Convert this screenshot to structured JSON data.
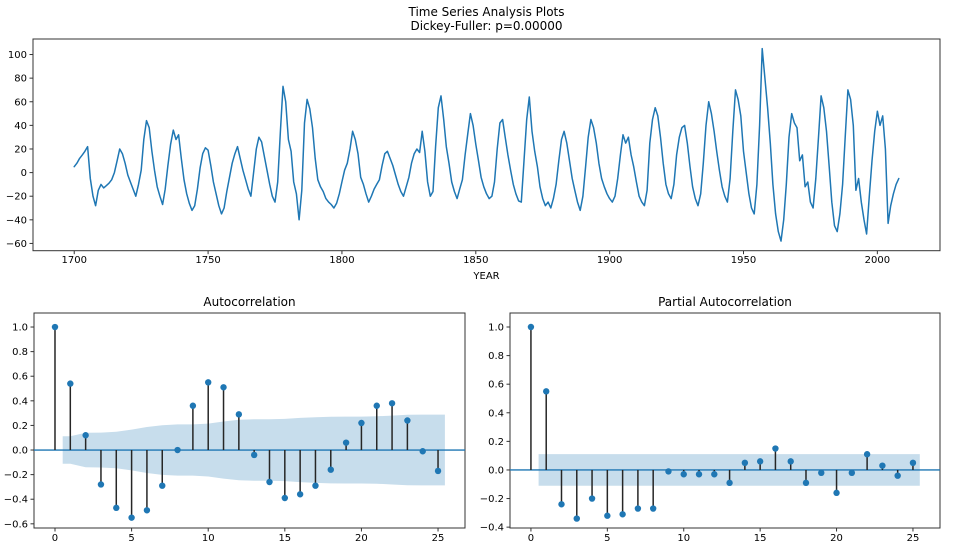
{
  "figure": {
    "title_line1": "Time Series Analysis Plots",
    "title_line2": "Dickey-Fuller: p=0.00000",
    "background": "#ffffff",
    "colors": {
      "series_line": "#1f77b4",
      "marker": "#1f77b4",
      "stem_line": "#262626",
      "ci_band": "#c7ddec",
      "zero_line": "#1f77b4",
      "spine": "#333333",
      "text": "#000000"
    }
  },
  "chart_data": [
    {
      "id": "timeseries",
      "type": "line",
      "title": "",
      "xlabel": "YEAR",
      "ylabel": "",
      "year_start": 1700,
      "values": [
        5,
        8,
        12,
        15,
        18,
        22,
        -5,
        -20,
        -28,
        -15,
        -10,
        -13,
        -11,
        -9,
        -6,
        0,
        10,
        20,
        16,
        8,
        -2,
        -8,
        -14,
        -20,
        -10,
        2,
        28,
        44,
        38,
        18,
        2,
        -12,
        -20,
        -27,
        -14,
        6,
        24,
        36,
        28,
        32,
        12,
        -6,
        -18,
        -26,
        -32,
        -28,
        -14,
        4,
        16,
        21,
        19,
        6,
        -8,
        -18,
        -28,
        -35,
        -30,
        -16,
        -4,
        8,
        16,
        22,
        12,
        2,
        -6,
        -14,
        -20,
        0,
        20,
        30,
        26,
        14,
        2,
        -10,
        -20,
        -25,
        -8,
        35,
        73,
        60,
        28,
        18,
        -8,
        -18,
        -40,
        -15,
        42,
        62,
        54,
        38,
        12,
        -6,
        -12,
        -16,
        -22,
        -25,
        -27,
        -30,
        -26,
        -18,
        -8,
        2,
        8,
        20,
        35,
        28,
        16,
        -4,
        -10,
        -18,
        -25,
        -20,
        -14,
        -10,
        -6,
        6,
        16,
        18,
        12,
        6,
        -2,
        -10,
        -16,
        -20,
        -12,
        -4,
        8,
        16,
        20,
        17,
        35,
        18,
        -8,
        -20,
        -16,
        22,
        55,
        65,
        45,
        22,
        8,
        -8,
        -16,
        -22,
        -14,
        -6,
        15,
        33,
        50,
        40,
        24,
        10,
        -4,
        -12,
        -18,
        -22,
        -20,
        -8,
        20,
        42,
        45,
        30,
        15,
        2,
        -10,
        -18,
        -24,
        -25,
        10,
        45,
        64,
        35,
        18,
        5,
        -12,
        -22,
        -28,
        -25,
        -30,
        -22,
        -10,
        10,
        28,
        35,
        25,
        10,
        -5,
        -15,
        -25,
        -32,
        -20,
        5,
        30,
        45,
        38,
        25,
        8,
        -5,
        -12,
        -18,
        -22,
        -25,
        -20,
        -5,
        15,
        32,
        25,
        30,
        15,
        5,
        -8,
        -20,
        -25,
        -28,
        -15,
        25,
        45,
        55,
        48,
        30,
        8,
        -10,
        -18,
        -22,
        -10,
        15,
        30,
        38,
        40,
        25,
        5,
        -12,
        -22,
        -28,
        -18,
        8,
        40,
        60,
        50,
        35,
        18,
        2,
        -12,
        -20,
        -25,
        -5,
        35,
        70,
        62,
        48,
        18,
        0,
        -18,
        -30,
        -35,
        -10,
        40,
        105,
        80,
        55,
        25,
        -10,
        -35,
        -50,
        -58,
        -40,
        -10,
        30,
        50,
        42,
        38,
        10,
        15,
        -12,
        -8,
        -25,
        -30,
        -5,
        30,
        65,
        55,
        35,
        5,
        -25,
        -45,
        -50,
        -35,
        -10,
        30,
        70,
        62,
        40,
        -15,
        -5,
        -25,
        -40,
        -52,
        -20,
        10,
        35,
        52,
        40,
        48,
        20,
        -43,
        -28,
        -18,
        -10,
        -5
      ],
      "xticks": [
        1700,
        1750,
        1800,
        1850,
        1900,
        1950,
        2000
      ],
      "xtick_labels": [
        "1700",
        "1750",
        "1800",
        "1850",
        "1900",
        "1950",
        "2000"
      ],
      "yticks": [
        100,
        80,
        60,
        40,
        20,
        0,
        -20,
        -40,
        -60
      ],
      "ytick_labels": [
        "100",
        "80",
        "60",
        "40",
        "20",
        "0",
        "−20",
        "−40",
        "−60"
      ],
      "xlim": [
        1684.6,
        2023.4
      ],
      "ylim": [
        -66.15,
        113.15
      ],
      "grid": false,
      "legend": null
    },
    {
      "id": "acf",
      "type": "stem",
      "title": "Autocorrelation",
      "lags": [
        0,
        1,
        2,
        3,
        4,
        5,
        6,
        7,
        8,
        9,
        10,
        11,
        12,
        13,
        14,
        15,
        16,
        17,
        18,
        19,
        20,
        21,
        22,
        23,
        24,
        25
      ],
      "values": [
        1.0,
        0.54,
        0.12,
        -0.28,
        -0.47,
        -0.55,
        -0.49,
        -0.29,
        0.0,
        0.36,
        0.55,
        0.51,
        0.29,
        -0.04,
        -0.26,
        -0.39,
        -0.36,
        -0.29,
        -0.16,
        0.06,
        0.22,
        0.36,
        0.38,
        0.24,
        -0.01,
        -0.17
      ],
      "ci_band": {
        "x_start": 0.5,
        "x_end": 25.45,
        "halfwidths_lag1_to_25": [
          0.112,
          0.14,
          0.142,
          0.148,
          0.166,
          0.187,
          0.202,
          0.208,
          0.208,
          0.215,
          0.232,
          0.246,
          0.25,
          0.25,
          0.253,
          0.261,
          0.267,
          0.271,
          0.272,
          0.272,
          0.274,
          0.28,
          0.286,
          0.288,
          0.288
        ]
      },
      "xticks": [
        0,
        5,
        10,
        15,
        20,
        25
      ],
      "xtick_labels": [
        "0",
        "5",
        "10",
        "15",
        "20",
        "25"
      ],
      "yticks": [
        1.0,
        0.8,
        0.6,
        0.4,
        0.2,
        0.0,
        -0.2,
        -0.4,
        -0.6
      ],
      "ytick_labels": [
        "1.0",
        "0.8",
        "0.6",
        "0.4",
        "0.2",
        "0.0",
        "−0.2",
        "−0.4",
        "−0.6"
      ],
      "xlim": [
        -1.37,
        26.76
      ],
      "ylim": [
        -0.634,
        1.114
      ],
      "grid": false,
      "legend": null
    },
    {
      "id": "pacf",
      "type": "stem",
      "title": "Partial Autocorrelation",
      "lags": [
        0,
        1,
        2,
        3,
        4,
        5,
        6,
        7,
        8,
        9,
        10,
        11,
        12,
        13,
        14,
        15,
        16,
        17,
        18,
        19,
        20,
        21,
        22,
        23,
        24,
        25
      ],
      "values": [
        1.0,
        0.55,
        -0.24,
        -0.34,
        -0.2,
        -0.32,
        -0.31,
        -0.27,
        -0.27,
        -0.01,
        -0.03,
        -0.03,
        -0.03,
        -0.09,
        0.05,
        0.06,
        0.15,
        0.06,
        -0.09,
        -0.02,
        -0.16,
        -0.02,
        0.11,
        0.03,
        -0.04,
        0.05
      ],
      "ci_band": {
        "x_start": 0.5,
        "x_end": 25.45,
        "halfwidths_lag1_to_25": [
          0.111,
          0.111,
          0.111,
          0.111,
          0.111,
          0.111,
          0.111,
          0.111,
          0.111,
          0.111,
          0.111,
          0.111,
          0.111,
          0.111,
          0.111,
          0.111,
          0.111,
          0.111,
          0.111,
          0.111,
          0.111,
          0.111,
          0.111,
          0.111,
          0.111
        ]
      },
      "xticks": [
        0,
        5,
        10,
        15,
        20,
        25
      ],
      "xtick_labels": [
        "0",
        "5",
        "10",
        "15",
        "20",
        "25"
      ],
      "yticks": [
        1.0,
        0.8,
        0.6,
        0.4,
        0.2,
        0.0,
        -0.2,
        -0.4
      ],
      "ytick_labels": [
        "1.0",
        "0.8",
        "0.6",
        "0.4",
        "0.2",
        "0.0",
        "−0.2",
        "−0.4"
      ],
      "xlim": [
        -1.37,
        26.77
      ],
      "ylim": [
        -0.406,
        1.098
      ],
      "grid": false,
      "legend": null
    }
  ]
}
